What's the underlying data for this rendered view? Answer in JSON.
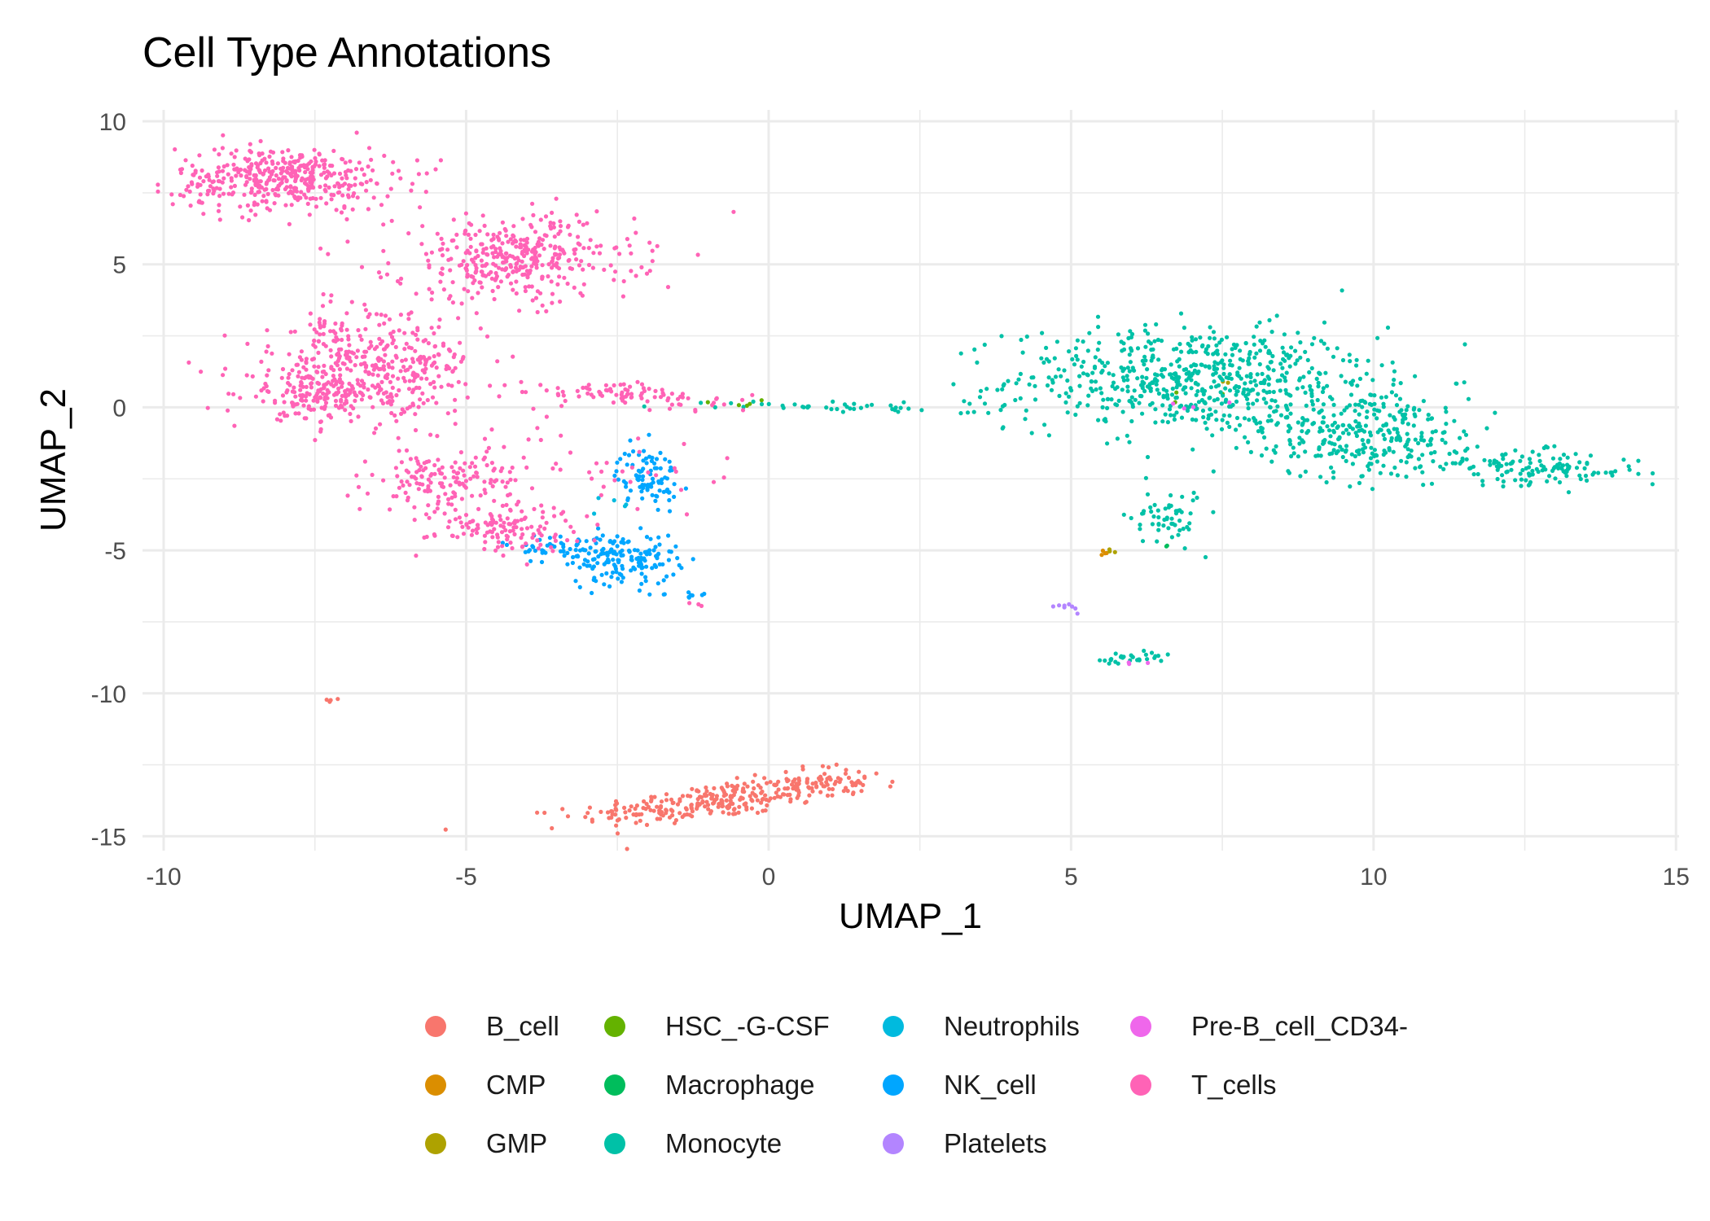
{
  "chart_data": {
    "type": "scatter",
    "title": "Cell Type Annotations",
    "xlabel": "UMAP_1",
    "ylabel": "UMAP_2",
    "xlim": [
      -10,
      15
    ],
    "ylim": [
      -15,
      10
    ],
    "xticks": [
      -10,
      -5,
      0,
      5,
      10,
      15
    ],
    "yticks": [
      -15,
      -10,
      -5,
      0,
      5,
      10
    ],
    "grid": true,
    "legend_position": "bottom",
    "series": [
      {
        "name": "B_cell",
        "color": "#F8766D",
        "clusters": [
          {
            "cx": -1.0,
            "cy": -13.8,
            "sx": 1.1,
            "sy": 0.3,
            "n": 260,
            "tilt": 0.25
          },
          {
            "cx": 1.0,
            "cy": -13.1,
            "sx": 0.5,
            "sy": 0.3,
            "n": 70,
            "tilt": 0
          },
          {
            "cx": -7.2,
            "cy": -10.2,
            "sx": 0.05,
            "sy": 0.05,
            "n": 4,
            "tilt": 0
          }
        ]
      },
      {
        "name": "CMP",
        "color": "#DB8E00",
        "clusters": [
          {
            "cx": 5.6,
            "cy": -5.1,
            "sx": 0.05,
            "sy": 0.05,
            "n": 4,
            "tilt": 0
          }
        ]
      },
      {
        "name": "GMP",
        "color": "#AEA200",
        "clusters": [
          {
            "cx": 5.65,
            "cy": -5.0,
            "sx": 0.05,
            "sy": 0.05,
            "n": 3,
            "tilt": 0
          },
          {
            "cx": 7.6,
            "cy": 0.8,
            "sx": 0.1,
            "sy": 0.1,
            "n": 2,
            "tilt": 0
          }
        ]
      },
      {
        "name": "HSC_-G-CSF",
        "color": "#64B200",
        "clusters": [
          {
            "cx": -0.6,
            "cy": 0.15,
            "sx": 0.25,
            "sy": 0.05,
            "n": 6,
            "tilt": 0
          },
          {
            "cx": 6.8,
            "cy": 0.3,
            "sx": 0.3,
            "sy": 0.2,
            "n": 3,
            "tilt": 0
          }
        ]
      },
      {
        "name": "Macrophage",
        "color": "#00BD5C",
        "clusters": [
          {
            "cx": 6.5,
            "cy": -4.8,
            "sx": 0.05,
            "sy": 0.05,
            "n": 2,
            "tilt": 0
          }
        ]
      },
      {
        "name": "Monocyte",
        "color": "#00C1A7",
        "clusters": [
          {
            "cx": 7.0,
            "cy": 1.0,
            "sx": 1.5,
            "sy": 0.9,
            "n": 620,
            "tilt": 0
          },
          {
            "cx": 9.8,
            "cy": -0.9,
            "sx": 1.0,
            "sy": 0.8,
            "n": 320,
            "tilt": -0.25
          },
          {
            "cx": 12.6,
            "cy": -2.1,
            "sx": 0.9,
            "sy": 0.3,
            "n": 140,
            "tilt": -0.1
          },
          {
            "cx": 6.6,
            "cy": -3.8,
            "sx": 0.3,
            "sy": 0.5,
            "n": 55,
            "tilt": 0
          },
          {
            "cx": 1.5,
            "cy": 0.0,
            "sx": 1.2,
            "sy": 0.08,
            "n": 45,
            "tilt": -0.05
          },
          {
            "cx": 6.0,
            "cy": -8.8,
            "sx": 0.35,
            "sy": 0.12,
            "n": 30,
            "tilt": 0
          }
        ]
      },
      {
        "name": "Neutrophils",
        "color": "#00BADE",
        "clusters": [
          {
            "cx": -2.5,
            "cy": -3.5,
            "sx": 0.25,
            "sy": 0.5,
            "n": 6,
            "tilt": 0
          }
        ]
      },
      {
        "name": "NK_cell",
        "color": "#00A6FF",
        "clusters": [
          {
            "cx": -2.4,
            "cy": -5.3,
            "sx": 0.45,
            "sy": 0.45,
            "n": 150,
            "tilt": 0
          },
          {
            "cx": -2.0,
            "cy": -2.4,
            "sx": 0.25,
            "sy": 0.5,
            "n": 90,
            "tilt": 0
          },
          {
            "cx": -3.4,
            "cy": -4.9,
            "sx": 0.5,
            "sy": 0.25,
            "n": 50,
            "tilt": 0
          },
          {
            "cx": -1.6,
            "cy": -6.6,
            "sx": 0.3,
            "sy": 0.1,
            "n": 10,
            "tilt": 0
          }
        ]
      },
      {
        "name": "Platelets",
        "color": "#B385FF",
        "clusters": [
          {
            "cx": 4.95,
            "cy": -7.0,
            "sx": 0.12,
            "sy": 0.08,
            "n": 8,
            "tilt": 0
          }
        ]
      },
      {
        "name": "Pre-B_cell_CD34-",
        "color": "#EF67EB",
        "clusters": [
          {
            "cx": 7.3,
            "cy": 0.1,
            "sx": 0.4,
            "sy": 0.2,
            "n": 4,
            "tilt": 0
          },
          {
            "cx": 6.2,
            "cy": -8.9,
            "sx": 0.15,
            "sy": 0.1,
            "n": 3,
            "tilt": 0
          }
        ]
      },
      {
        "name": "T_cells",
        "color": "#FF63B6",
        "clusters": [
          {
            "cx": -8.0,
            "cy": 8.0,
            "sx": 0.9,
            "sy": 0.55,
            "n": 420,
            "tilt": 0
          },
          {
            "cx": -4.2,
            "cy": 5.2,
            "sx": 1.0,
            "sy": 0.75,
            "n": 380,
            "tilt": 0
          },
          {
            "cx": -6.5,
            "cy": 1.4,
            "sx": 0.9,
            "sy": 0.9,
            "n": 420,
            "tilt": 0.45
          },
          {
            "cx": -7.6,
            "cy": 0.4,
            "sx": 0.5,
            "sy": 0.45,
            "n": 120,
            "tilt": 0
          },
          {
            "cx": -5.3,
            "cy": -2.6,
            "sx": 0.6,
            "sy": 0.6,
            "n": 160,
            "tilt": 0
          },
          {
            "cx": -4.4,
            "cy": -4.2,
            "sx": 0.6,
            "sy": 0.4,
            "n": 120,
            "tilt": 0
          },
          {
            "cx": -2.2,
            "cy": 0.4,
            "sx": 0.9,
            "sy": 0.2,
            "n": 90,
            "tilt": -0.15
          },
          {
            "cx": -2.6,
            "cy": -2.0,
            "sx": 1.0,
            "sy": 1.0,
            "n": 40,
            "tilt": 0
          },
          {
            "cx": -1.2,
            "cy": -6.9,
            "sx": 0.05,
            "sy": 0.05,
            "n": 3,
            "tilt": 0
          }
        ]
      }
    ]
  }
}
